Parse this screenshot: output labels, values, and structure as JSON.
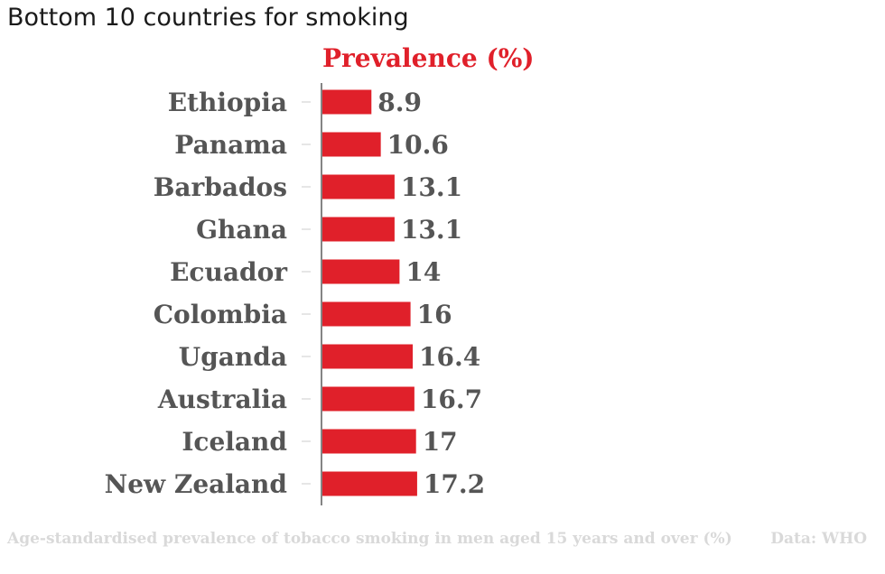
{
  "title": "Bottom 10 countries for smoking",
  "series_label": "Prevalence (%)",
  "footer": {
    "note": "Age-standardised prevalence of tobacco smoking in men aged 15 years and over (%)",
    "source": "Data: WHO"
  },
  "colors": {
    "bar": "#e0202a",
    "label": "#555555",
    "series_label": "#e0202a",
    "axis": "#333333",
    "footer": "#d9d9d9"
  },
  "chart_data": {
    "type": "bar",
    "orientation": "horizontal",
    "categories": [
      "Ethiopia",
      "Panama",
      "Barbados",
      "Ghana",
      "Ecuador",
      "Colombia",
      "Uganda",
      "Australia",
      "Iceland",
      "New Zealand"
    ],
    "values": [
      8.9,
      10.6,
      13.1,
      13.1,
      14,
      16,
      16.4,
      16.7,
      17,
      17.2
    ],
    "value_labels": [
      "8.9",
      "10.6",
      "13.1",
      "13.1",
      "14",
      "16",
      "16.4",
      "16.7",
      "17",
      "17.2"
    ],
    "title": "Prevalence (%)",
    "xlim": [
      0,
      17.2
    ],
    "grid": false,
    "legend": "none"
  }
}
